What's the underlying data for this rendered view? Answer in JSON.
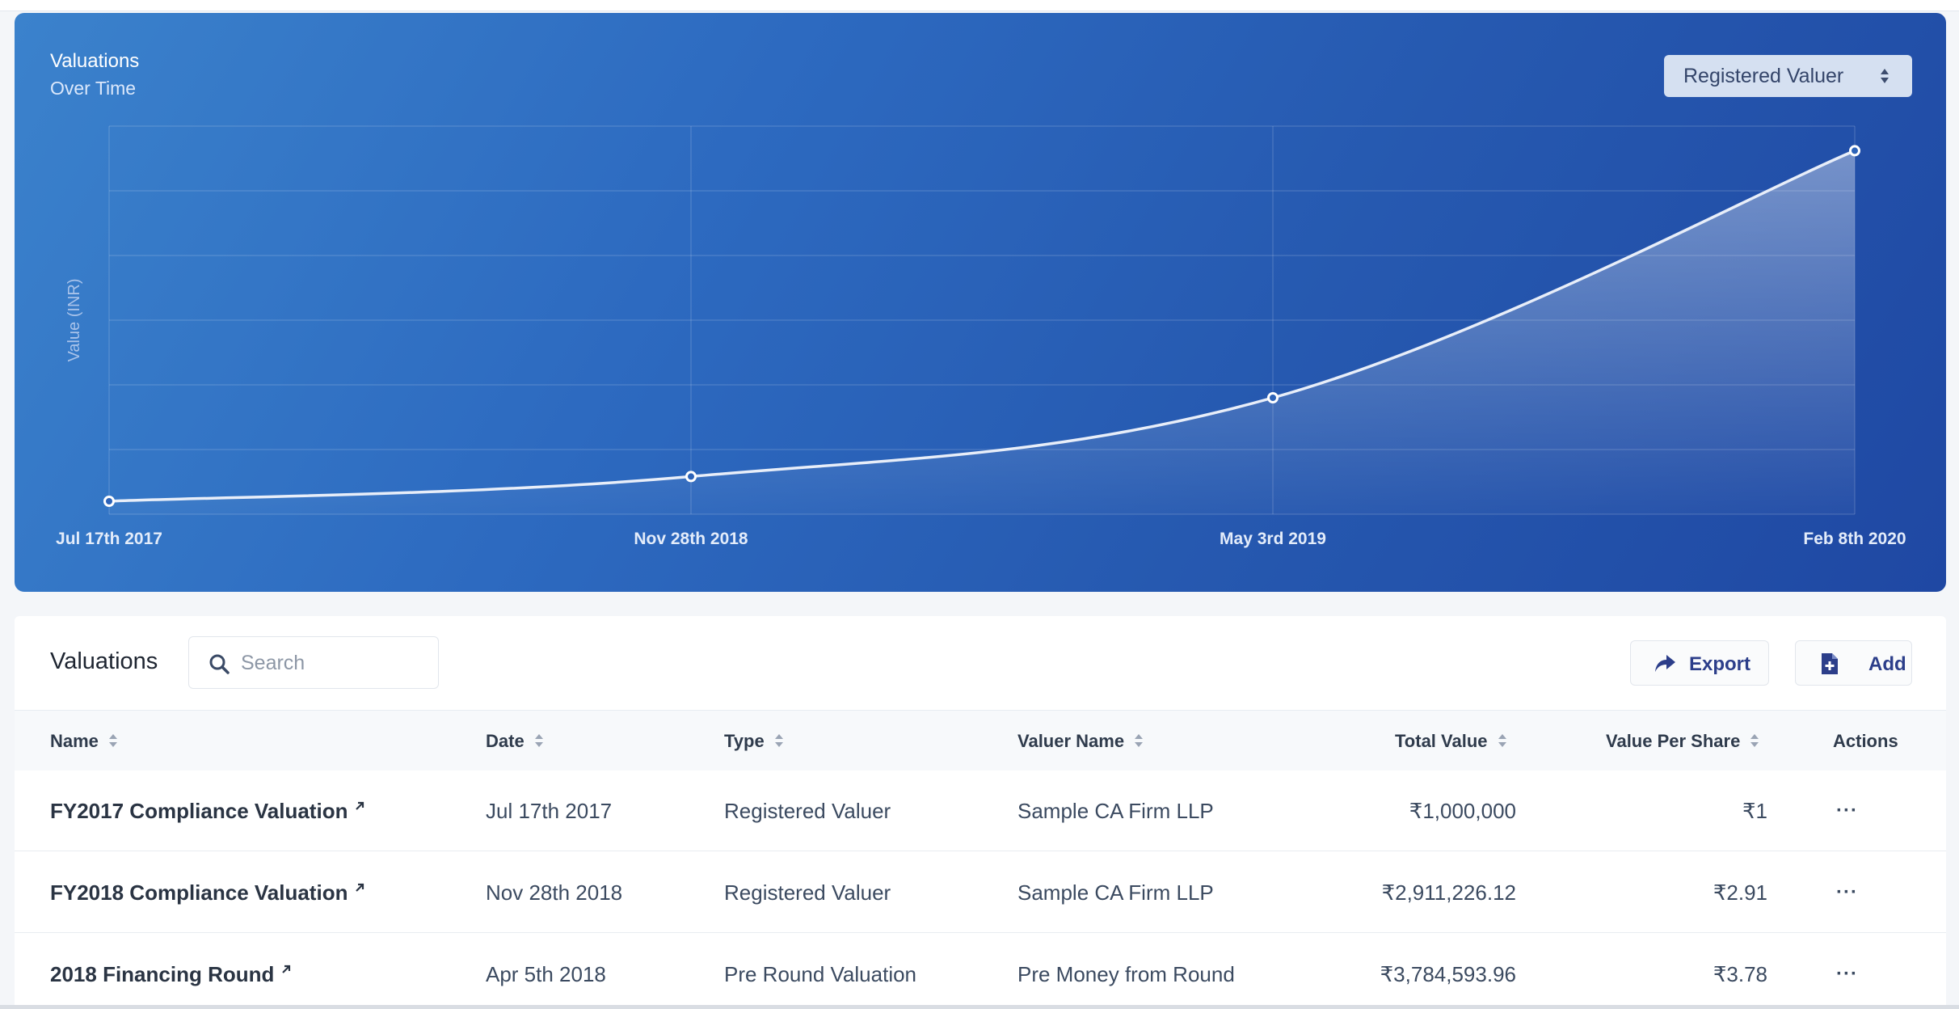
{
  "chart_card": {
    "title": "Valuations",
    "subtitle": "Over Time",
    "type_select": {
      "selected": "Registered Valuer",
      "icon": "sort-caret-icon"
    }
  },
  "chart_data": {
    "type": "area",
    "title": "Valuations",
    "subtitle": "Over Time",
    "ylabel": "Value (INR)",
    "xlabel": "",
    "categories": [
      "Jul 17th 2017",
      "Nov 28th 2018",
      "May 3rd 2019",
      "Feb 8th 2020"
    ],
    "series": [
      {
        "name": "Total Value",
        "values": [
          1000000,
          2911226.12,
          9000000,
          28100000
        ]
      }
    ],
    "ylim": [
      0,
      30000000
    ],
    "grid": true,
    "legend": "none"
  },
  "table": {
    "heading": "Valuations",
    "search": {
      "placeholder": "Search",
      "value": "",
      "icon": "search-icon"
    },
    "export_label": "Export",
    "add_label": "Add",
    "columns": [
      "Name",
      "Date",
      "Type",
      "Valuer Name",
      "Total Value",
      "Value Per Share",
      "Actions"
    ],
    "rows": [
      {
        "name": "FY2017 Compliance Valuation",
        "date": "Jul 17th 2017",
        "type": "Registered Valuer",
        "valuer": "Sample CA Firm LLP",
        "total": "₹1,000,000",
        "per_share": "₹1",
        "actions": "···"
      },
      {
        "name": "FY2018 Compliance Valuation",
        "date": "Nov 28th 2018",
        "type": "Registered Valuer",
        "valuer": "Sample CA Firm LLP",
        "total": "₹2,911,226.12",
        "per_share": "₹2.91",
        "actions": "···"
      },
      {
        "name": "2018 Financing Round",
        "date": "Apr 5th 2018",
        "type": "Pre Round Valuation",
        "valuer": "Pre Money from Round",
        "total": "₹3,784,593.96",
        "per_share": "₹3.78",
        "actions": "···"
      }
    ]
  }
}
